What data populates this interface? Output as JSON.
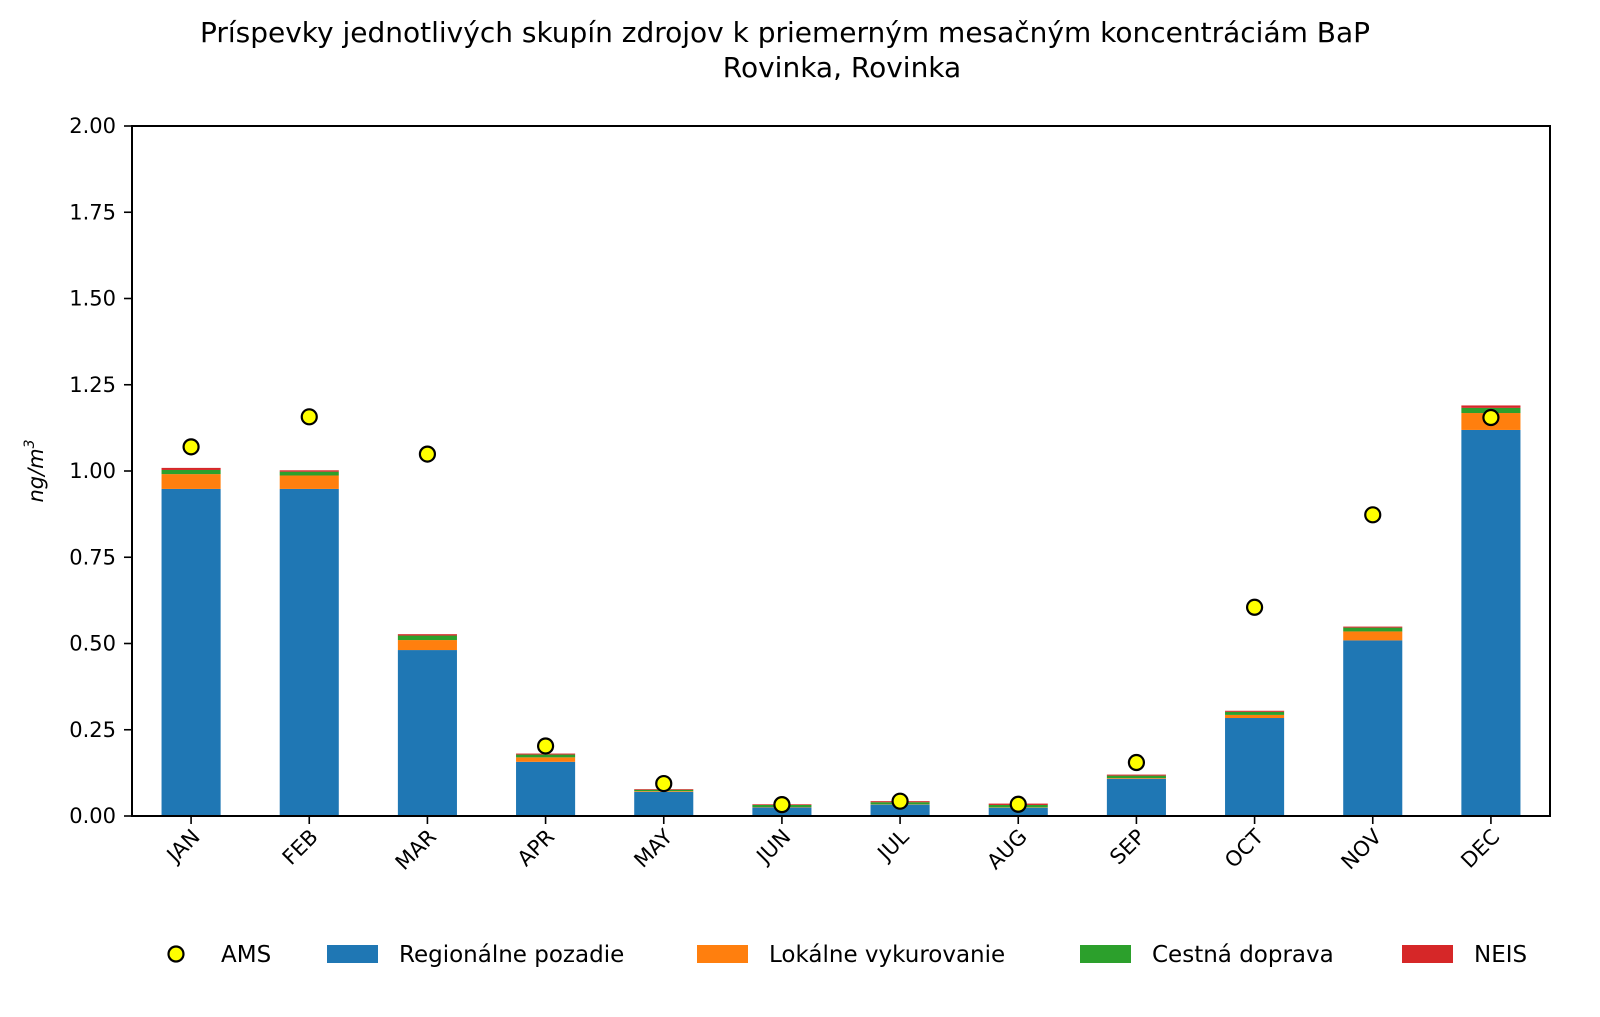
{
  "chart_data": {
    "type": "bar",
    "stacked": true,
    "title": "Príspevky jednotlivých skupín zdrojov k priemerným mesačným koncentráciám BaP",
    "subtitle": "Rovinka, Rovinka",
    "xlabel": "",
    "ylabel": "ng/m",
    "ylabel_superscript": "3",
    "ylim": [
      0,
      2.0
    ],
    "yticks": [
      "0.00",
      "0.25",
      "0.50",
      "0.75",
      "1.00",
      "1.25",
      "1.50",
      "1.75",
      "2.00"
    ],
    "ytick_values": [
      0,
      0.25,
      0.5,
      0.75,
      1.0,
      1.25,
      1.5,
      1.75,
      2.0
    ],
    "grid": false,
    "legend_position": "bottom",
    "categories": [
      "JAN",
      "FEB",
      "MAR",
      "APR",
      "MAY",
      "JUN",
      "JUL",
      "AUG",
      "SEP",
      "OCT",
      "NOV",
      "DEC"
    ],
    "series": [
      {
        "name": "Regionálne pozadie",
        "color": "#1f77b4",
        "values": [
          0.948,
          0.948,
          0.481,
          0.157,
          0.07,
          0.025,
          0.033,
          0.024,
          0.108,
          0.284,
          0.509,
          1.119
        ]
      },
      {
        "name": "Lokálne vykurovanie",
        "color": "#ff7f0e",
        "values": [
          0.043,
          0.039,
          0.029,
          0.013,
          0.002,
          0.001,
          0.001,
          0.001,
          0.002,
          0.009,
          0.026,
          0.049
        ]
      },
      {
        "name": "Cestná doprava",
        "color": "#2ca02c",
        "values": [
          0.012,
          0.011,
          0.013,
          0.008,
          0.004,
          0.006,
          0.006,
          0.007,
          0.007,
          0.009,
          0.011,
          0.015
        ]
      },
      {
        "name": "NEIS",
        "color": "#d62728",
        "values": [
          0.006,
          0.004,
          0.004,
          0.003,
          0.002,
          0.002,
          0.003,
          0.004,
          0.003,
          0.003,
          0.003,
          0.007
        ]
      }
    ],
    "points": {
      "name": "AMS",
      "color": "#ffff00",
      "edge_color": "#000000",
      "values": [
        1.07,
        1.157,
        1.049,
        0.203,
        0.094,
        0.033,
        0.043,
        0.034,
        0.155,
        0.605,
        0.873,
        1.155
      ]
    },
    "legend": [
      "AMS",
      "Regionálne pozadie",
      "Lokálne vykurovanie",
      "Cestná doprava",
      "NEIS"
    ]
  }
}
